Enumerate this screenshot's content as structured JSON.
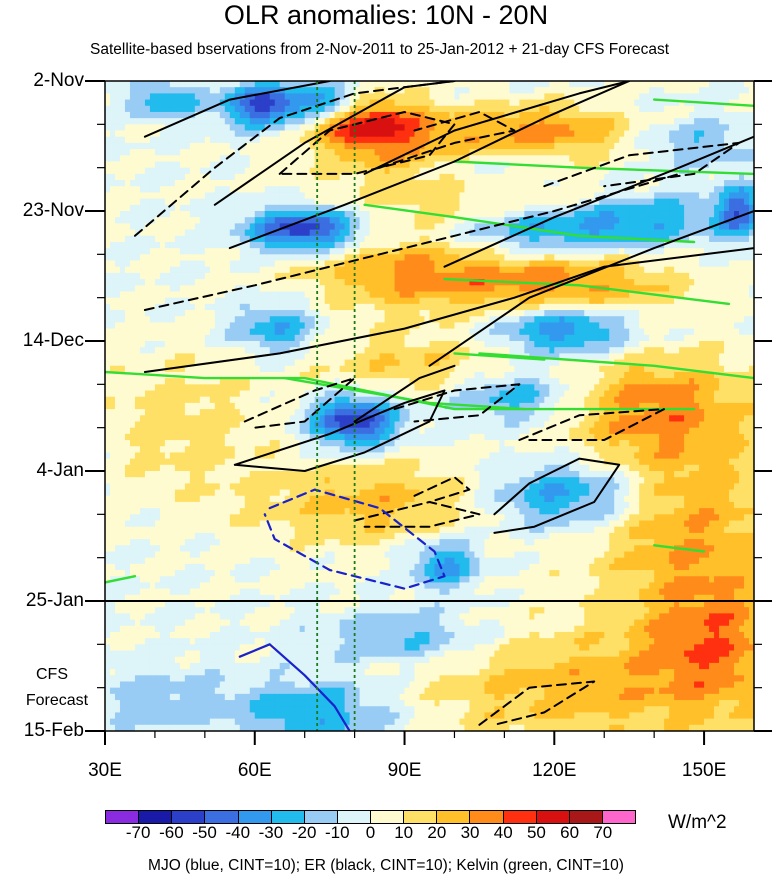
{
  "chart_data": {
    "type": "heatmap",
    "title": "OLR anomalies: 10N - 20N",
    "subtitle": "Satellite-based bservations from 2-Nov-2011 to 25-Jan-2012 + 21-day CFS Forecast",
    "x_axis": {
      "range": [
        30,
        160
      ],
      "ticks": [
        {
          "value": 30,
          "label": "30E"
        },
        {
          "value": 60,
          "label": "60E"
        },
        {
          "value": 90,
          "label": "90E"
        },
        {
          "value": 120,
          "label": "120E"
        },
        {
          "value": 150,
          "label": "150E"
        }
      ]
    },
    "y_axis": {
      "range_days": [
        0,
        105
      ],
      "ticks": [
        {
          "day": 0,
          "label": "2-Nov"
        },
        {
          "day": 21,
          "label": "23-Nov"
        },
        {
          "day": 42,
          "label": "14-Dec"
        },
        {
          "day": 63,
          "label": "4-Jan"
        },
        {
          "day": 84,
          "label": "25-Jan"
        },
        {
          "day": 105,
          "label": "15-Feb"
        }
      ],
      "forecast_start_day": 84
    },
    "forecast_label": [
      "CFS",
      "Forecast"
    ],
    "reference_longitudes": [
      72.5,
      80
    ],
    "colorbar": {
      "units": "W/m^2",
      "levels": [
        -70,
        -60,
        -50,
        -40,
        -30,
        -20,
        -10,
        0,
        10,
        20,
        30,
        40,
        50,
        60,
        70
      ],
      "colors": [
        "#8a2be2",
        "#1a1aa8",
        "#2b3fc8",
        "#3b6ee0",
        "#3399ee",
        "#22bbee",
        "#99ccf5",
        "#ddf4f8",
        "#fffbd0",
        "#ffe066",
        "#ffc02a",
        "#ff8c1a",
        "#ff3010",
        "#d81010",
        "#a81818",
        "#ff66cc"
      ]
    },
    "anomaly_features": [
      {
        "lon": 62,
        "day": 4,
        "value": -55,
        "dlon": 6,
        "dday": 2.5
      },
      {
        "lon": 42,
        "day": 3,
        "value": -30,
        "dlon": 5,
        "dday": 2
      },
      {
        "lon": 75,
        "day": 3.5,
        "value": -40,
        "dlon": 5,
        "dday": 2
      },
      {
        "lon": 82,
        "day": 6.5,
        "value": 45,
        "dlon": 8,
        "dday": 3
      },
      {
        "lon": 95,
        "day": 11,
        "value": 30,
        "dlon": 14,
        "dday": 4
      },
      {
        "lon": 120,
        "day": 8,
        "value": 30,
        "dlon": 12,
        "dday": 3
      },
      {
        "lon": 105,
        "day": 14,
        "value": -25,
        "dlon": 10,
        "dday": 3
      },
      {
        "lon": 148,
        "day": 10,
        "value": -20,
        "dlon": 8,
        "dday": 3
      },
      {
        "lon": 70,
        "day": 24,
        "value": -60,
        "dlon": 8,
        "dday": 2.5
      },
      {
        "lon": 118,
        "day": 24,
        "value": -40,
        "dlon": 14,
        "dday": 3
      },
      {
        "lon": 140,
        "day": 22,
        "value": -25,
        "dlon": 10,
        "dday": 3
      },
      {
        "lon": 157,
        "day": 21,
        "value": -45,
        "dlon": 3,
        "dday": 3
      },
      {
        "lon": 90,
        "day": 31,
        "value": 30,
        "dlon": 14,
        "dday": 4
      },
      {
        "lon": 122,
        "day": 33,
        "value": 35,
        "dlon": 16,
        "dday": 4
      },
      {
        "lon": 105,
        "day": 20,
        "value": 20,
        "dlon": 20,
        "dday": 4
      },
      {
        "lon": 64,
        "day": 40,
        "value": -30,
        "dlon": 6,
        "dday": 3
      },
      {
        "lon": 122,
        "day": 40,
        "value": -45,
        "dlon": 10,
        "dday": 3
      },
      {
        "lon": 92,
        "day": 46,
        "value": 20,
        "dlon": 14,
        "dday": 4
      },
      {
        "lon": 80,
        "day": 55,
        "value": -60,
        "dlon": 6,
        "dday": 3
      },
      {
        "lon": 112,
        "day": 51,
        "value": -30,
        "dlon": 10,
        "dday": 3
      },
      {
        "lon": 140,
        "day": 52,
        "value": 30,
        "dlon": 14,
        "dday": 6
      },
      {
        "lon": 45,
        "day": 55,
        "value": 15,
        "dlon": 12,
        "dday": 8
      },
      {
        "lon": 123,
        "day": 67,
        "value": -40,
        "dlon": 12,
        "dday": 4
      },
      {
        "lon": 98,
        "day": 78,
        "value": -35,
        "dlon": 5,
        "dday": 3
      },
      {
        "lon": 145,
        "day": 70,
        "value": 30,
        "dlon": 14,
        "dday": 10
      },
      {
        "lon": 85,
        "day": 68,
        "value": 25,
        "dlon": 18,
        "dday": 5
      },
      {
        "lon": 152,
        "day": 90,
        "value": 30,
        "dlon": 10,
        "dday": 8
      },
      {
        "lon": 125,
        "day": 98,
        "value": 25,
        "dlon": 25,
        "dday": 7
      },
      {
        "lon": 90,
        "day": 90,
        "value": -25,
        "dlon": 12,
        "dday": 3
      },
      {
        "lon": 72,
        "day": 102,
        "value": -30,
        "dlon": 12,
        "dday": 4
      },
      {
        "lon": 40,
        "day": 100,
        "value": -15,
        "dlon": 10,
        "dday": 4
      }
    ],
    "contours": {
      "mjo_blue": [
        {
          "style": "dashed",
          "points": [
            [
              63,
              69
            ],
            [
              72,
              66
            ],
            [
              85,
              69
            ],
            [
              96,
              76
            ],
            [
              98,
              80
            ],
            [
              90,
              82
            ],
            [
              75,
              79
            ],
            [
              64,
              74
            ],
            [
              62,
              70
            ]
          ]
        },
        {
          "style": "solid",
          "points": [
            [
              57,
              93
            ],
            [
              63,
              91
            ],
            [
              70,
              96
            ],
            [
              76,
              101
            ],
            [
              79,
              105
            ]
          ]
        }
      ],
      "er_black_solid": [
        [
          [
            38,
            9
          ],
          [
            55,
            3
          ],
          [
            75,
            0
          ]
        ],
        [
          [
            52,
            20
          ],
          [
            70,
            10
          ],
          [
            90,
            1
          ],
          [
            100,
            0
          ]
        ],
        [
          [
            55,
            27
          ],
          [
            78,
            20
          ],
          [
            100,
            13
          ],
          [
            118,
            6
          ],
          [
            135,
            0
          ]
        ],
        [
          [
            82,
            15
          ],
          [
            100,
            8
          ],
          [
            125,
            2
          ],
          [
            135,
            0
          ]
        ],
        [
          [
            98,
            30
          ],
          [
            120,
            22
          ],
          [
            145,
            14
          ],
          [
            160,
            9
          ]
        ],
        [
          [
            95,
            46
          ],
          [
            115,
            35
          ],
          [
            140,
            27
          ],
          [
            160,
            21
          ]
        ],
        [
          [
            38,
            47
          ],
          [
            65,
            44
          ],
          [
            90,
            40
          ],
          [
            112,
            35
          ],
          [
            130,
            30
          ],
          [
            160,
            27
          ]
        ],
        [
          [
            56,
            62
          ],
          [
            75,
            57
          ],
          [
            90,
            52
          ],
          [
            98,
            50
          ],
          [
            95,
            55
          ],
          [
            82,
            60
          ],
          [
            70,
            63
          ],
          [
            56,
            62
          ]
        ],
        [
          [
            80,
            55
          ],
          [
            93,
            48
          ],
          [
            100,
            46
          ]
        ],
        [
          [
            108,
            70
          ],
          [
            115,
            65
          ],
          [
            125,
            61
          ],
          [
            133,
            62
          ],
          [
            128,
            68
          ],
          [
            116,
            72
          ],
          [
            108,
            73
          ]
        ]
      ],
      "er_black_dashed": [
        [
          [
            36,
            25
          ],
          [
            52,
            14
          ],
          [
            65,
            6
          ],
          [
            80,
            2
          ],
          [
            100,
            0
          ]
        ],
        [
          [
            65,
            15
          ],
          [
            75,
            8
          ],
          [
            90,
            5
          ],
          [
            100,
            7
          ],
          [
            95,
            12
          ],
          [
            80,
            15
          ],
          [
            65,
            15
          ]
        ],
        [
          [
            85,
            14
          ],
          [
            100,
            10
          ],
          [
            112,
            8
          ],
          [
            105,
            5
          ],
          [
            92,
            8
          ]
        ],
        [
          [
            38,
            37
          ],
          [
            60,
            33
          ],
          [
            80,
            29
          ],
          [
            100,
            25
          ],
          [
            120,
            21
          ],
          [
            145,
            15
          ]
        ],
        [
          [
            118,
            17
          ],
          [
            135,
            12
          ],
          [
            157,
            10
          ],
          [
            148,
            15
          ],
          [
            130,
            17
          ]
        ],
        [
          [
            58,
            55
          ],
          [
            72,
            50
          ],
          [
            80,
            48
          ],
          [
            70,
            55
          ],
          [
            60,
            56
          ]
        ],
        [
          [
            88,
            53
          ],
          [
            100,
            50
          ],
          [
            113,
            49
          ],
          [
            105,
            54
          ],
          [
            92,
            55
          ]
        ],
        [
          [
            113,
            58
          ],
          [
            125,
            54
          ],
          [
            142,
            53
          ],
          [
            130,
            58
          ],
          [
            115,
            58
          ]
        ],
        [
          [
            92,
            67
          ],
          [
            100,
            64
          ],
          [
            103,
            66
          ],
          [
            95,
            68
          ]
        ],
        [
          [
            80,
            71
          ],
          [
            95,
            68
          ],
          [
            105,
            70
          ],
          [
            95,
            72
          ],
          [
            82,
            72
          ]
        ],
        [
          [
            105,
            104
          ],
          [
            115,
            98
          ],
          [
            128,
            97
          ],
          [
            118,
            102
          ],
          [
            108,
            104
          ]
        ]
      ],
      "kelvin_green": [
        [
          [
            82,
            20
          ],
          [
            100,
            22
          ],
          [
            125,
            25
          ],
          [
            148,
            26
          ]
        ],
        [
          [
            98,
            32
          ],
          [
            125,
            33
          ],
          [
            155,
            36
          ]
        ],
        [
          [
            30,
            47
          ],
          [
            50,
            48
          ],
          [
            70,
            48
          ],
          [
            100,
            53
          ],
          [
            120,
            53
          ],
          [
            148,
            53
          ]
        ],
        [
          [
            66,
            48
          ],
          [
            95,
            52
          ],
          [
            114,
            53
          ]
        ],
        [
          [
            105,
            44
          ],
          [
            140,
            46
          ],
          [
            160,
            48
          ]
        ],
        [
          [
            100,
            13
          ],
          [
            125,
            14
          ],
          [
            160,
            15
          ]
        ],
        [
          [
            140,
            3
          ],
          [
            160,
            4
          ]
        ],
        [
          [
            30,
            81
          ],
          [
            36,
            80
          ]
        ],
        [
          [
            140,
            75
          ],
          [
            150,
            76
          ]
        ],
        [
          [
            100,
            44
          ],
          [
            118,
            45
          ]
        ]
      ]
    },
    "footer": "MJO (blue, CINT=10); ER (black, CINT=10); Kelvin (green, CINT=10)"
  }
}
